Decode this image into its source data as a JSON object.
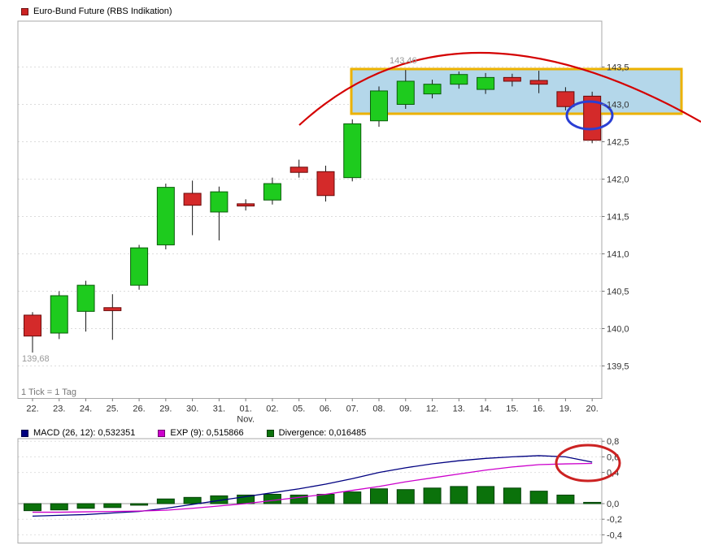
{
  "header": {
    "title": "Euro-Bund Future (RBS Indikation)",
    "series_swatch_color": "#cc2222"
  },
  "macd_legend": {
    "macd": {
      "label": "MACD (26, 12): 0,532351",
      "color": "#000080"
    },
    "exp": {
      "label": "EXP (9): 0,515866",
      "color": "#cc00cc"
    },
    "divergence": {
      "label": "Divergence: 0,016485",
      "color": "#0b720b"
    }
  },
  "chart_data": [
    {
      "type": "candlestick",
      "title": "Euro-Bund Future (RBS Indikation)",
      "footnote": "1 Tick = 1 Tag",
      "month_label": "Nov.",
      "month_label_index": 8,
      "x_tick_labels": [
        "22.",
        "23.",
        "24.",
        "25.",
        "26.",
        "29.",
        "30.",
        "31.",
        "01.",
        "02.",
        "05.",
        "06.",
        "07.",
        "08.",
        "09.",
        "12.",
        "13.",
        "14.",
        "15.",
        "16.",
        "19.",
        "20."
      ],
      "y_tick_labels": [
        "143,5",
        "143,0",
        "142,5",
        "142,0",
        "141,5",
        "141,0",
        "140,5",
        "140,0",
        "139,5"
      ],
      "y_tick_values": [
        143.5,
        143.0,
        142.5,
        142.0,
        141.5,
        141.0,
        140.5,
        140.0,
        139.5
      ],
      "ylim": [
        139.1,
        144.1
      ],
      "annotations": [
        {
          "text": "143,46",
          "meaning": "period-high"
        },
        {
          "text": "139,68",
          "meaning": "period-low"
        }
      ],
      "candles": [
        {
          "o": 140.18,
          "h": 140.22,
          "l": 139.68,
          "c": 139.9
        },
        {
          "o": 139.94,
          "h": 140.5,
          "l": 139.86,
          "c": 140.44
        },
        {
          "o": 140.23,
          "h": 140.64,
          "l": 139.96,
          "c": 140.58
        },
        {
          "o": 140.28,
          "h": 140.46,
          "l": 139.85,
          "c": 140.24
        },
        {
          "o": 140.58,
          "h": 141.12,
          "l": 140.52,
          "c": 141.08
        },
        {
          "o": 141.12,
          "h": 141.94,
          "l": 141.06,
          "c": 141.89
        },
        {
          "o": 141.81,
          "h": 141.98,
          "l": 141.25,
          "c": 141.65
        },
        {
          "o": 141.56,
          "h": 141.9,
          "l": 141.18,
          "c": 141.83
        },
        {
          "o": 141.67,
          "h": 141.73,
          "l": 141.58,
          "c": 141.64
        },
        {
          "o": 141.72,
          "h": 142.02,
          "l": 141.66,
          "c": 141.94
        },
        {
          "o": 142.16,
          "h": 142.26,
          "l": 142.02,
          "c": 142.09
        },
        {
          "o": 142.1,
          "h": 142.18,
          "l": 141.7,
          "c": 141.78
        },
        {
          "o": 142.02,
          "h": 142.8,
          "l": 141.97,
          "c": 142.74
        },
        {
          "o": 142.78,
          "h": 143.24,
          "l": 142.7,
          "c": 143.18
        },
        {
          "o": 143.0,
          "h": 143.46,
          "l": 142.94,
          "c": 143.31
        },
        {
          "o": 143.14,
          "h": 143.33,
          "l": 143.08,
          "c": 143.27
        },
        {
          "o": 143.27,
          "h": 143.44,
          "l": 143.21,
          "c": 143.4
        },
        {
          "o": 143.2,
          "h": 143.42,
          "l": 143.14,
          "c": 143.36
        },
        {
          "o": 143.36,
          "h": 143.41,
          "l": 143.24,
          "c": 143.31
        },
        {
          "o": 143.32,
          "h": 143.45,
          "l": 143.15,
          "c": 143.27
        },
        {
          "o": 143.17,
          "h": 143.23,
          "l": 142.92,
          "c": 142.97
        },
        {
          "o": 143.11,
          "h": 143.17,
          "l": 142.48,
          "c": 142.52
        }
      ],
      "colors": {
        "up": "#1ecb1e",
        "up_border": "#0a5d0a",
        "down": "#d42a2a",
        "down_border": "#6b0a0a"
      },
      "overlays": {
        "trend_arc_color": "#d40000",
        "highlight_box": {
          "fill": "#b4d7ea",
          "border": "#ecb200"
        },
        "last_candle_ellipse_color": "#2a3fd4"
      }
    },
    {
      "type": "macd",
      "y_tick_labels": [
        "0,8",
        "0,6",
        "0,4",
        "0,0",
        "-0,2",
        "-0,4"
      ],
      "y_tick_values": [
        0.8,
        0.6,
        0.4,
        0.0,
        -0.2,
        -0.4
      ],
      "ylim": [
        -0.5,
        0.83
      ],
      "ellipse_color": "#cc2222",
      "series": [
        {
          "name": "MACD (26, 12)",
          "type": "line",
          "color": "#000080",
          "current_value": "0,532351",
          "values": [
            -0.16,
            -0.15,
            -0.14,
            -0.12,
            -0.1,
            -0.06,
            -0.01,
            0.04,
            0.09,
            0.14,
            0.19,
            0.25,
            0.32,
            0.4,
            0.46,
            0.51,
            0.55,
            0.58,
            0.6,
            0.615,
            0.6,
            0.532351
          ]
        },
        {
          "name": "EXP (9)",
          "type": "line",
          "color": "#cc00cc",
          "current_value": "0,515866",
          "values": [
            -0.11,
            -0.11,
            -0.105,
            -0.1,
            -0.095,
            -0.085,
            -0.06,
            -0.03,
            0.0,
            0.04,
            0.08,
            0.12,
            0.17,
            0.22,
            0.28,
            0.33,
            0.38,
            0.43,
            0.47,
            0.5,
            0.51,
            0.515866
          ]
        },
        {
          "name": "Divergence",
          "type": "bar",
          "color": "#0b720b",
          "current_value": "0,016485",
          "values": [
            -0.09,
            -0.08,
            -0.06,
            -0.05,
            -0.02,
            0.06,
            0.08,
            0.1,
            0.11,
            0.12,
            0.11,
            0.12,
            0.15,
            0.19,
            0.18,
            0.2,
            0.22,
            0.22,
            0.2,
            0.16,
            0.11,
            0.016485
          ]
        }
      ]
    }
  ]
}
